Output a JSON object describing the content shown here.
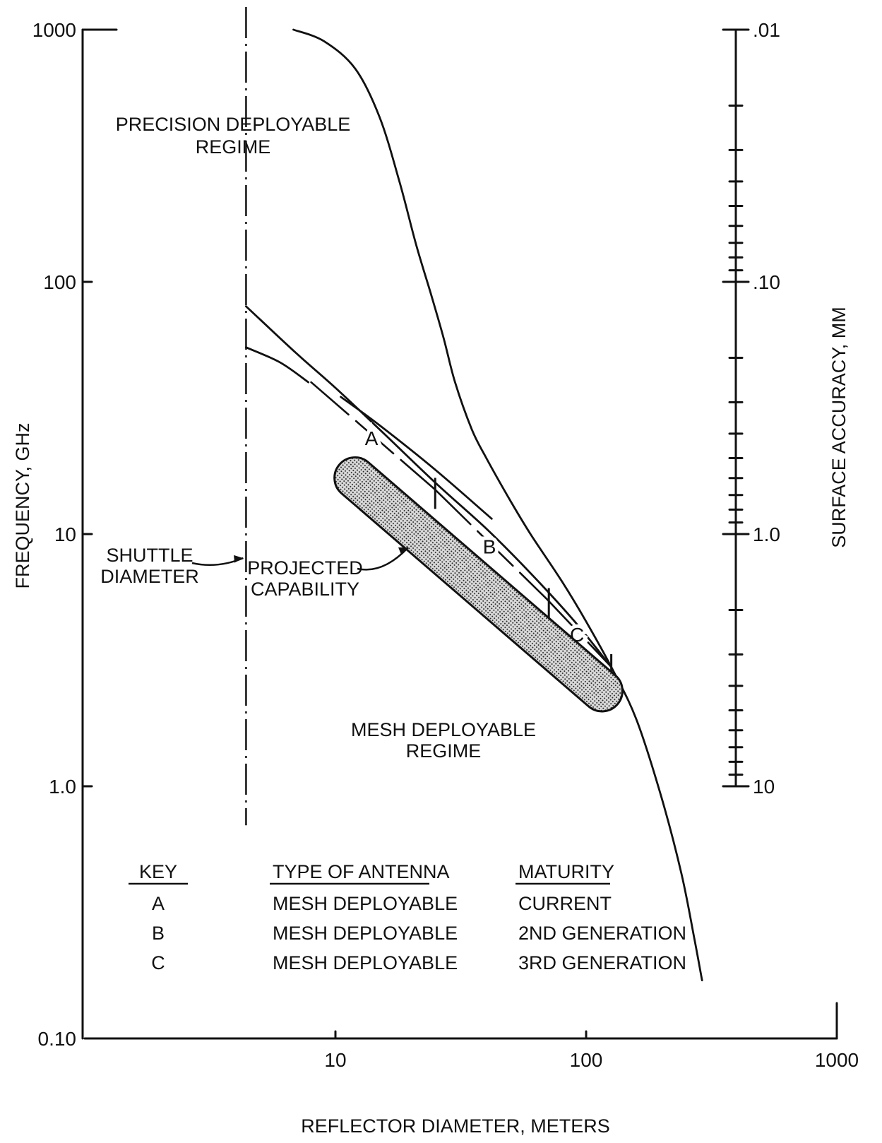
{
  "chart_data": {
    "type": "line",
    "x_axis": {
      "label": "REFLECTOR DIAMETER, METERS",
      "scale": "log",
      "range": [
        1,
        1000
      ],
      "tick_labels": [
        "10",
        "100",
        "1000"
      ],
      "tick_values": [
        10,
        100,
        1000
      ]
    },
    "y_axis": {
      "label": "FREQUENCY, GHz",
      "scale": "log",
      "range": [
        0.1,
        1000
      ],
      "tick_labels": [
        "0.10",
        "1.0",
        "10",
        "100",
        "1000"
      ],
      "tick_values": [
        0.1,
        1,
        10,
        100,
        1000
      ]
    },
    "y2_axis": {
      "label": "SURFACE ACCURACY, MM",
      "scale": "log",
      "range": [
        0.01,
        10
      ],
      "inverted": true,
      "tick_labels": [
        ".01",
        ".10",
        "1.0",
        "10"
      ],
      "tick_values": [
        0.01,
        0.1,
        1,
        10
      ]
    },
    "series": [
      {
        "id": "boundary",
        "x": [
          6.8,
          9,
          12,
          15,
          18,
          21,
          24,
          27,
          30,
          35,
          40,
          50,
          60,
          80,
          100,
          130,
          160,
          200,
          240,
          270,
          290
        ],
        "y": [
          1000,
          900,
          700,
          450,
          250,
          140,
          90,
          60,
          40,
          26,
          20,
          13.5,
          10,
          6.5,
          4.5,
          2.8,
          1.8,
          0.9,
          0.45,
          0.25,
          0.17
        ]
      },
      {
        "id": "upper-envelope",
        "x": [
          4.4,
          7,
          10,
          15,
          25,
          40,
          60,
          90,
          125
        ],
        "y": [
          80,
          52,
          38,
          26,
          16,
          10.5,
          7,
          4.5,
          3
        ]
      },
      {
        "id": "precision-limit",
        "x": [
          4.4,
          6,
          7.8
        ],
        "y": [
          55,
          48,
          40
        ]
      },
      {
        "id": "mesh-limit",
        "x": [
          10.5,
          15,
          25,
          42
        ],
        "y": [
          35,
          27,
          18,
          11.5
        ]
      }
    ],
    "segments": [
      {
        "label": "A",
        "x": [
          8,
          25
        ],
        "y": [
          40,
          15
        ]
      },
      {
        "label": "B",
        "x": [
          25,
          70
        ],
        "y": [
          15,
          5.5
        ]
      },
      {
        "label": "C",
        "x": [
          70,
          125
        ],
        "y": [
          5.5,
          3
        ]
      }
    ],
    "segment_marks": [
      {
        "x": 25,
        "y": 14.5
      },
      {
        "x": 71,
        "y": 5.3
      },
      {
        "x": 126,
        "y": 2.9
      }
    ],
    "shuttle_diameter_x": 4.4,
    "projected_capability_band": {
      "from": {
        "x": 11,
        "y": 19
      },
      "to": {
        "x": 125,
        "y": 2.1
      }
    },
    "annotations": {
      "precision_regime": [
        "PRECISION DEPLOYABLE",
        "REGIME"
      ],
      "mesh_regime": [
        "MESH DEPLOYABLE",
        "REGIME"
      ],
      "shuttle": [
        "SHUTTLE",
        "DIAMETER"
      ],
      "projected": [
        "PROJECTED",
        "CAPABILITY"
      ]
    },
    "key_table": {
      "headers": [
        "KEY",
        "TYPE OF ANTENNA",
        "MATURITY"
      ],
      "rows": [
        [
          "A",
          "MESH DEPLOYABLE",
          "CURRENT"
        ],
        [
          "B",
          "MESH DEPLOYABLE",
          "2ND GENERATION"
        ],
        [
          "C",
          "MESH DEPLOYABLE",
          "3RD GENERATION"
        ]
      ]
    },
    "grid": false
  }
}
